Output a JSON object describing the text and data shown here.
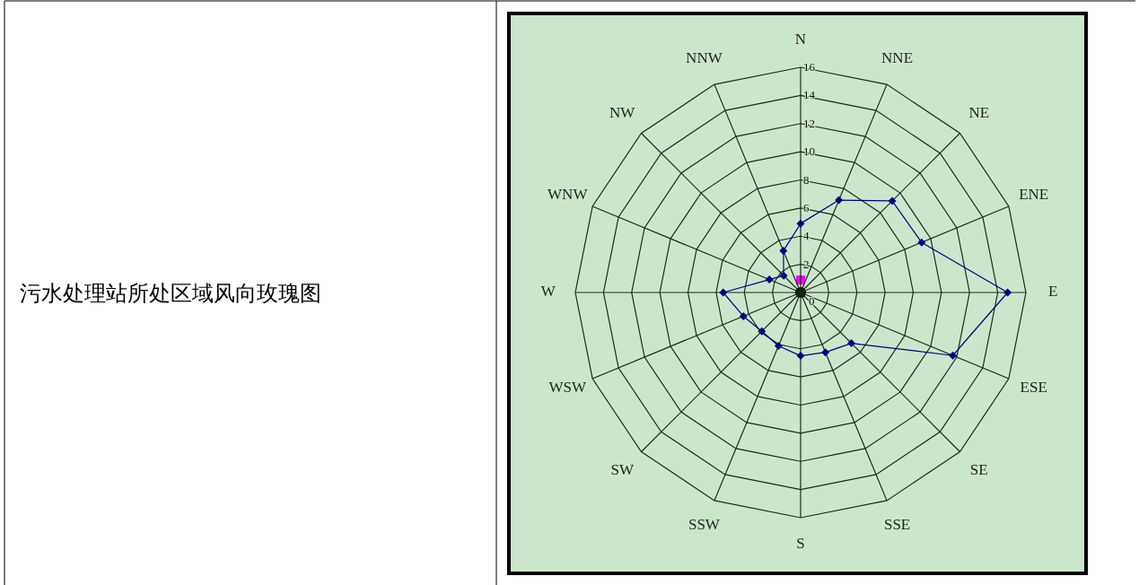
{
  "chart_data": {
    "type": "radar",
    "title": "污水处理站所处区域风向玫瑰图",
    "categories": [
      "N",
      "NNE",
      "NE",
      "ENE",
      "E",
      "ESE",
      "SE",
      "SSE",
      "S",
      "SSW",
      "SW",
      "WSW",
      "W",
      "WNW",
      "NW",
      "NNW"
    ],
    "series": [
      {
        "color": "#000080",
        "marker": "diamond",
        "values": [
          4.9,
          7.1,
          9.2,
          9.3,
          14.7,
          11.7,
          5.1,
          4.6,
          4.5,
          4.1,
          3.9,
          4.4,
          5.5,
          2.4,
          1.7,
          3.2
        ]
      }
    ],
    "ylim": [
      0,
      16
    ],
    "yticks": [
      0,
      2,
      4,
      6,
      8,
      10,
      12,
      14,
      16
    ],
    "grid": true
  }
}
